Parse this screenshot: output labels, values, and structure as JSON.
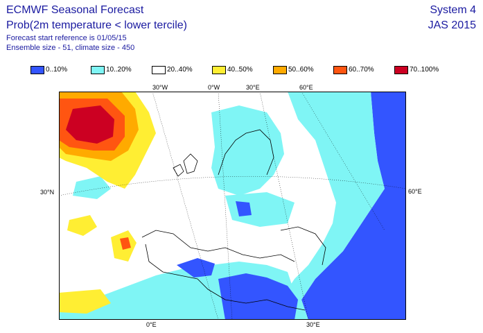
{
  "header": {
    "title": "ECMWF Seasonal Forecast",
    "subtitle": "Prob(2m temperature < lower tercile)",
    "start_ref": "Forecast start reference is 01/05/15",
    "ensemble": "Ensemble size - 51, climate size - 450",
    "system": "System 4",
    "period": "JAS 2015"
  },
  "legend": [
    {
      "label": "0..10%",
      "color": "#3355ff"
    },
    {
      "label": "10..20%",
      "color": "#7ff5f5"
    },
    {
      "label": "20..40%",
      "color": "#ffffff"
    },
    {
      "label": "40..50%",
      "color": "#ffee33"
    },
    {
      "label": "50..60%",
      "color": "#ffaa00"
    },
    {
      "label": "60..70%",
      "color": "#ff5511"
    },
    {
      "label": "70..100%",
      "color": "#cc0022"
    }
  ],
  "axis": {
    "top": [
      "30°W",
      "0°W",
      "30°E",
      "60°E"
    ],
    "bottom": [
      "0°E",
      "30°E"
    ],
    "left": "30°N",
    "right": "60°E"
  }
}
